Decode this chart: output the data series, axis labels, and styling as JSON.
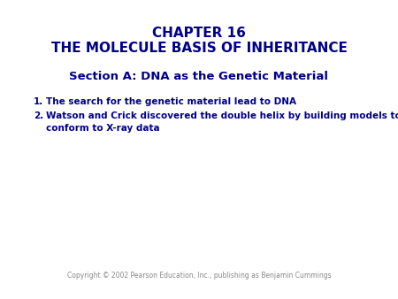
{
  "background_color": "#ffffff",
  "title_line1": "CHAPTER 16",
  "title_line2": "THE MOLECULE BASIS OF INHERITANCE",
  "title_color": "#00008B",
  "title_fontsize": 11,
  "section_title": "Section A: DNA as the Genetic Material",
  "section_color": "#00008B",
  "section_fontsize": 9.5,
  "item1": "The search for the genetic material lead to DNA",
  "item2_line1": "Watson and Crick discovered the double helix by building models to",
  "item2_line2": "conform to X-ray data",
  "item_color": "#00008B",
  "item_fontsize": 7.5,
  "copyright": "Copyright © 2002 Pearson Education, Inc., publishing as Benjamin Cummings",
  "copyright_color": "#888888",
  "copyright_fontsize": 5.5
}
